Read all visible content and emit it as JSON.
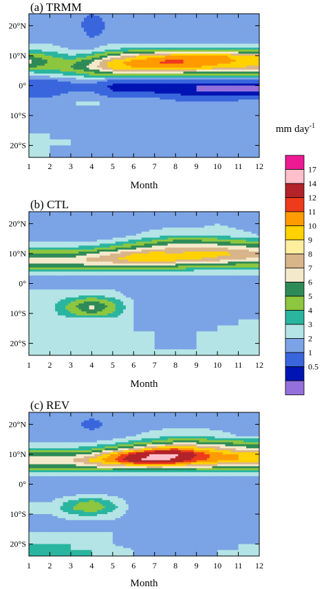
{
  "chart_data": [
    {
      "type": "heatmap",
      "panel_label": "(a) TRMM",
      "xlabel": "Month",
      "x_ticks": [
        "1",
        "2",
        "3",
        "4",
        "5",
        "6",
        "7",
        "8",
        "9",
        "10",
        "11",
        "12"
      ],
      "y_ticks": [
        "20°N",
        "10°N",
        "0°",
        "10°S",
        "20°S"
      ],
      "y_values_deg": [
        20,
        10,
        0,
        -10,
        -20
      ],
      "ylim": [
        -24,
        24
      ],
      "months": [
        1,
        2,
        3,
        4,
        5,
        6,
        7,
        8,
        9,
        10,
        11,
        12
      ],
      "lats": [
        24,
        20,
        16,
        14,
        12,
        10,
        8,
        6,
        4,
        2,
        0,
        -2,
        -4,
        -6,
        -8,
        -10,
        -12,
        -14,
        -16,
        -18,
        -20,
        -22,
        -24
      ],
      "grid": [
        [
          2,
          2,
          2.5,
          2,
          2.5,
          2.5,
          2.5,
          2.5,
          2.5,
          2.5,
          2.5,
          2.5
        ],
        [
          2.5,
          2.5,
          3,
          1,
          2.5,
          2.5,
          2.5,
          2.5,
          2.5,
          2.5,
          2.5,
          2.5
        ],
        [
          2.5,
          3,
          3,
          2,
          2.5,
          2.5,
          2.5,
          2.5,
          2.5,
          2.5,
          2.5,
          2.5
        ],
        [
          3,
          3,
          2.5,
          2.5,
          3,
          3,
          3,
          3,
          3,
          3,
          3,
          3
        ],
        [
          4,
          3.5,
          3,
          3,
          4,
          4.5,
          4.5,
          4.5,
          4.5,
          4.5,
          4.5,
          4.5
        ],
        [
          6,
          5,
          4,
          5,
          7,
          8.5,
          9.5,
          10,
          10.5,
          10.5,
          9.5,
          9
        ],
        [
          7.5,
          6,
          5.5,
          7,
          9.5,
          10.5,
          11,
          11.5,
          10.5,
          10.5,
          10,
          10
        ],
        [
          6,
          5.5,
          6,
          7.5,
          9.5,
          10,
          10.5,
          10.5,
          10,
          9.5,
          9,
          8.5
        ],
        [
          3.5,
          4,
          4.5,
          5.5,
          6.5,
          6.5,
          6.5,
          6.5,
          6,
          6,
          6,
          6
        ],
        [
          2,
          2,
          2.5,
          3,
          2,
          2,
          2,
          2,
          2,
          2,
          2,
          2
        ],
        [
          1,
          1,
          1.5,
          1.5,
          0.8,
          0.8,
          0.8,
          0.6,
          0.5,
          0.4,
          0.4,
          0.5
        ],
        [
          1.5,
          1.5,
          2,
          2,
          1,
          1,
          0.8,
          0.6,
          0.5,
          0.4,
          0.4,
          0.5
        ],
        [
          2,
          2,
          2.5,
          2.5,
          2,
          2,
          2,
          1.5,
          1.2,
          1.2,
          1.5,
          1.5
        ],
        [
          2.5,
          2.5,
          3,
          3.5,
          2.5,
          2.5,
          2.5,
          2.5,
          2.5,
          2.5,
          2.5,
          2.5
        ],
        [
          2.5,
          2.5,
          2.5,
          2.5,
          2.5,
          2.5,
          2.5,
          2.5,
          2.5,
          2.5,
          2.5,
          2.5
        ],
        [
          2.5,
          2.5,
          2.5,
          2.5,
          2.5,
          2.5,
          2.5,
          2.5,
          2.5,
          2.5,
          2.5,
          2.5
        ],
        [
          2.5,
          2.5,
          2.5,
          2.5,
          2.5,
          2.5,
          2.5,
          2.5,
          2.5,
          2.5,
          2.5,
          2.5
        ],
        [
          2.5,
          2.5,
          2.5,
          2.5,
          2.5,
          2.5,
          2.5,
          2.5,
          2.5,
          2.5,
          2.5,
          2.5
        ],
        [
          3,
          3,
          2.5,
          2.5,
          2.5,
          2.5,
          2.5,
          2.5,
          2.5,
          2.5,
          2.5,
          3
        ],
        [
          3.5,
          3,
          3,
          2.5,
          2.5,
          2.5,
          2.5,
          2.5,
          2.5,
          2.5,
          2.5,
          3
        ],
        [
          3.5,
          3,
          3,
          2.5,
          2.5,
          2.5,
          2.5,
          2.5,
          2.5,
          2.5,
          2.5,
          3
        ],
        [
          3,
          3,
          2.5,
          2,
          2,
          2,
          2,
          2,
          2,
          2,
          2.5,
          3
        ],
        [
          3,
          3,
          2.5,
          2,
          2,
          2,
          2,
          2,
          2,
          2,
          2.5,
          3
        ]
      ]
    },
    {
      "type": "heatmap",
      "panel_label": "(b) CTL",
      "xlabel": "Month",
      "x_ticks": [
        "1",
        "2",
        "3",
        "4",
        "5",
        "6",
        "7",
        "8",
        "9",
        "10",
        "11",
        "12"
      ],
      "y_ticks": [
        "20°N",
        "10°N",
        "0°",
        "10°S",
        "20°S"
      ],
      "y_values_deg": [
        20,
        10,
        0,
        -10,
        -20
      ],
      "ylim": [
        -24,
        24
      ],
      "months": [
        1,
        2,
        3,
        4,
        5,
        6,
        7,
        8,
        9,
        10,
        11,
        12
      ],
      "lats": [
        24,
        20,
        16,
        14,
        12,
        10,
        8,
        6,
        4,
        2,
        0,
        -2,
        -4,
        -6,
        -8,
        -10,
        -12,
        -14,
        -16,
        -18,
        -20,
        -22,
        -24
      ],
      "grid": [
        [
          2,
          2.5,
          2.5,
          2.5,
          2.5,
          2.5,
          2.5,
          2.5,
          2.5,
          2.5,
          2.5,
          2.5
        ],
        [
          2,
          2.5,
          2.5,
          2.5,
          2.5,
          2.5,
          2.5,
          2.5,
          2.5,
          3,
          2.5,
          2.5
        ],
        [
          2.5,
          2.5,
          2.5,
          2.5,
          2.5,
          3,
          3.5,
          4,
          4,
          4,
          3.5,
          3
        ],
        [
          3,
          3,
          3,
          3,
          3.5,
          4.5,
          5.5,
          6.5,
          6.5,
          6,
          5.5,
          5
        ],
        [
          4,
          4,
          4,
          4.5,
          5.5,
          6.5,
          7.5,
          8,
          8,
          8,
          7.5,
          7
        ],
        [
          6,
          6,
          6,
          7,
          8,
          9,
          9.5,
          9,
          9.5,
          9.5,
          9,
          8.5
        ],
        [
          7.5,
          7.5,
          7.5,
          8.5,
          9,
          9.5,
          9.5,
          9.5,
          9,
          8.5,
          8,
          7.5
        ],
        [
          6.5,
          6.5,
          6.5,
          7,
          7,
          7,
          6.5,
          6.5,
          6,
          6,
          5.5,
          5.5
        ],
        [
          4,
          4,
          4,
          4,
          4,
          4,
          4,
          4,
          3.5,
          3.5,
          3.5,
          3.5
        ],
        [
          2.5,
          2.5,
          2.5,
          2.5,
          2.5,
          2.5,
          2.5,
          2.5,
          2.5,
          2.5,
          2.5,
          2.5
        ],
        [
          2.5,
          2.5,
          2.5,
          2.5,
          2.5,
          2.5,
          2.5,
          2.5,
          2.5,
          2.5,
          2.5,
          2.5
        ],
        [
          3,
          3,
          3,
          3,
          3,
          2.5,
          2.5,
          2.5,
          2.5,
          2.5,
          2.5,
          2.5
        ],
        [
          3,
          3,
          3.5,
          4,
          3.5,
          2.5,
          2.5,
          2.5,
          2.5,
          2.5,
          2.5,
          2.5
        ],
        [
          3,
          3.5,
          5,
          6.5,
          5,
          3,
          2.5,
          2.5,
          2.5,
          2.5,
          2.5,
          2.5
        ],
        [
          3,
          3.5,
          5.5,
          7.5,
          5.5,
          3,
          2.5,
          2.5,
          2.5,
          2.5,
          2.5,
          2.5
        ],
        [
          3,
          3.5,
          5,
          6,
          5,
          3,
          2.5,
          2.5,
          2.5,
          2.5,
          2.5,
          3
        ],
        [
          3,
          3,
          3.5,
          3.5,
          3.5,
          3,
          2.5,
          2.5,
          2.5,
          2.5,
          3,
          3
        ],
        [
          3,
          3,
          3,
          3,
          3,
          3,
          2.5,
          2.5,
          2.5,
          3,
          3,
          3
        ],
        [
          3,
          3,
          3,
          3,
          3,
          3,
          3,
          2.5,
          3,
          3,
          3,
          3
        ],
        [
          3,
          3,
          3,
          3.5,
          3,
          3,
          3,
          2.5,
          3,
          3,
          3,
          3
        ],
        [
          3,
          3,
          3,
          4,
          3,
          3,
          3,
          2.5,
          3,
          3,
          3,
          3
        ],
        [
          3,
          3,
          3.5,
          4,
          3.5,
          3,
          3,
          3,
          3,
          3,
          3,
          3
        ],
        [
          3,
          3,
          3.5,
          4,
          3.5,
          3,
          3,
          3,
          3,
          3,
          3,
          3
        ]
      ]
    },
    {
      "type": "heatmap",
      "panel_label": "(c) REV",
      "xlabel": "Month",
      "x_ticks": [
        "1",
        "2",
        "3",
        "4",
        "5",
        "6",
        "7",
        "8",
        "9",
        "10",
        "11",
        "12"
      ],
      "y_ticks": [
        "20°N",
        "10°N",
        "0°",
        "10°S",
        "20°S"
      ],
      "y_values_deg": [
        20,
        10,
        0,
        -10,
        -20
      ],
      "ylim": [
        -24,
        24
      ],
      "months": [
        1,
        2,
        3,
        4,
        5,
        6,
        7,
        8,
        9,
        10,
        11,
        12
      ],
      "lats": [
        24,
        20,
        16,
        14,
        12,
        10,
        8,
        6,
        4,
        2,
        0,
        -2,
        -4,
        -6,
        -8,
        -10,
        -12,
        -14,
        -16,
        -18,
        -20,
        -22,
        -24
      ],
      "grid": [
        [
          2.5,
          2.5,
          2.5,
          2.5,
          2.5,
          2.5,
          2.5,
          2.5,
          2.5,
          2.5,
          2.5,
          2.5
        ],
        [
          2.5,
          2.5,
          2.5,
          1.5,
          2.5,
          2.5,
          2.5,
          2.5,
          2.5,
          2.5,
          2.5,
          2.5
        ],
        [
          2.5,
          2.5,
          2.5,
          2.5,
          2.5,
          3,
          3.5,
          4,
          4,
          3.5,
          3,
          3
        ],
        [
          3,
          3,
          3,
          3,
          3.5,
          4.5,
          5.5,
          6.5,
          6.5,
          6,
          5.5,
          5
        ],
        [
          4,
          4,
          4,
          4.5,
          6,
          7.5,
          9.5,
          10.5,
          9.5,
          8.5,
          7.5,
          7
        ],
        [
          6.5,
          6.5,
          6.5,
          7.5,
          10,
          12.5,
          14.5,
          14.5,
          12,
          10.5,
          10,
          9.5
        ],
        [
          8,
          7.5,
          8,
          9.5,
          11,
          13.5,
          15,
          13.5,
          11.5,
          10.5,
          10,
          9.5
        ],
        [
          6.5,
          6.5,
          6.5,
          7.5,
          8,
          8.5,
          9,
          8.5,
          8,
          7.5,
          7,
          6.5
        ],
        [
          4,
          4,
          4,
          4,
          4,
          4,
          4,
          4,
          4,
          4,
          4,
          4
        ],
        [
          2.5,
          2.5,
          2.5,
          2.5,
          2.5,
          2.5,
          2.5,
          2.5,
          2.5,
          2.5,
          2.5,
          2.5
        ],
        [
          2,
          2,
          2,
          2,
          2,
          2,
          2,
          2,
          2,
          2,
          2,
          2
        ],
        [
          2.5,
          2.5,
          2.5,
          2.5,
          2.5,
          2,
          2,
          2,
          2,
          2,
          2,
          2
        ],
        [
          2.5,
          2.5,
          3,
          3.5,
          3,
          2.5,
          2,
          2,
          2,
          2,
          2,
          2
        ],
        [
          3,
          3,
          4.5,
          5.5,
          4,
          2.5,
          2,
          2,
          2,
          2,
          2,
          2
        ],
        [
          3,
          3,
          5,
          6,
          4.5,
          2.5,
          2,
          2,
          2,
          2,
          2,
          2
        ],
        [
          3,
          3,
          4,
          4.5,
          3.5,
          2.5,
          2,
          2,
          2,
          2,
          2,
          2.5
        ],
        [
          2.5,
          2.5,
          3,
          3,
          3,
          2.5,
          2,
          2,
          2,
          2,
          2.5,
          2.5
        ],
        [
          2.5,
          2.5,
          2.5,
          3,
          2.5,
          2.5,
          2,
          2,
          2,
          2.5,
          2.5,
          2.5
        ],
        [
          3,
          3,
          3,
          3,
          3,
          2.5,
          2.5,
          2,
          2.5,
          2.5,
          2.5,
          3
        ],
        [
          3.5,
          3.5,
          3.5,
          3.5,
          3,
          2.5,
          2.5,
          2.5,
          2.5,
          2.5,
          2.5,
          3
        ],
        [
          4,
          4,
          4,
          3.5,
          3,
          2.5,
          2.5,
          2.5,
          2.5,
          2.5,
          3,
          3
        ],
        [
          4,
          4,
          4,
          4,
          3.5,
          3,
          2.5,
          2.5,
          2.5,
          3,
          3,
          3
        ],
        [
          4,
          4,
          4,
          4,
          3.5,
          3,
          2.5,
          2.5,
          2.5,
          3,
          3,
          3
        ]
      ]
    }
  ],
  "colorbar": {
    "unit_main": "mm day",
    "unit_exp": "-1",
    "levels": [
      {
        "label": "17",
        "color": "#ee1a94"
      },
      {
        "label": "14",
        "color": "#ffbfcb"
      },
      {
        "label": "12",
        "color": "#b2232a"
      },
      {
        "label": "11",
        "color": "#ee3b1c"
      },
      {
        "label": "10",
        "color": "#ff9b00"
      },
      {
        "label": "9",
        "color": "#ffd200"
      },
      {
        "label": "8",
        "color": "#ffee9e"
      },
      {
        "label": "7",
        "color": "#d9b58a"
      },
      {
        "label": "6",
        "color": "#f5e9cc"
      },
      {
        "label": "5",
        "color": "#2e8b57"
      },
      {
        "label": "4",
        "color": "#8dc63f"
      },
      {
        "label": "3",
        "color": "#2ab5a0"
      },
      {
        "label": "2",
        "color": "#b4e4e6"
      },
      {
        "label": "1",
        "color": "#7ba4e6"
      },
      {
        "label": "0.5",
        "color": "#3a66dd"
      },
      {
        "label": "",
        "color": "#0014b3"
      },
      {
        "label": "",
        "color": "#9370db"
      }
    ]
  }
}
